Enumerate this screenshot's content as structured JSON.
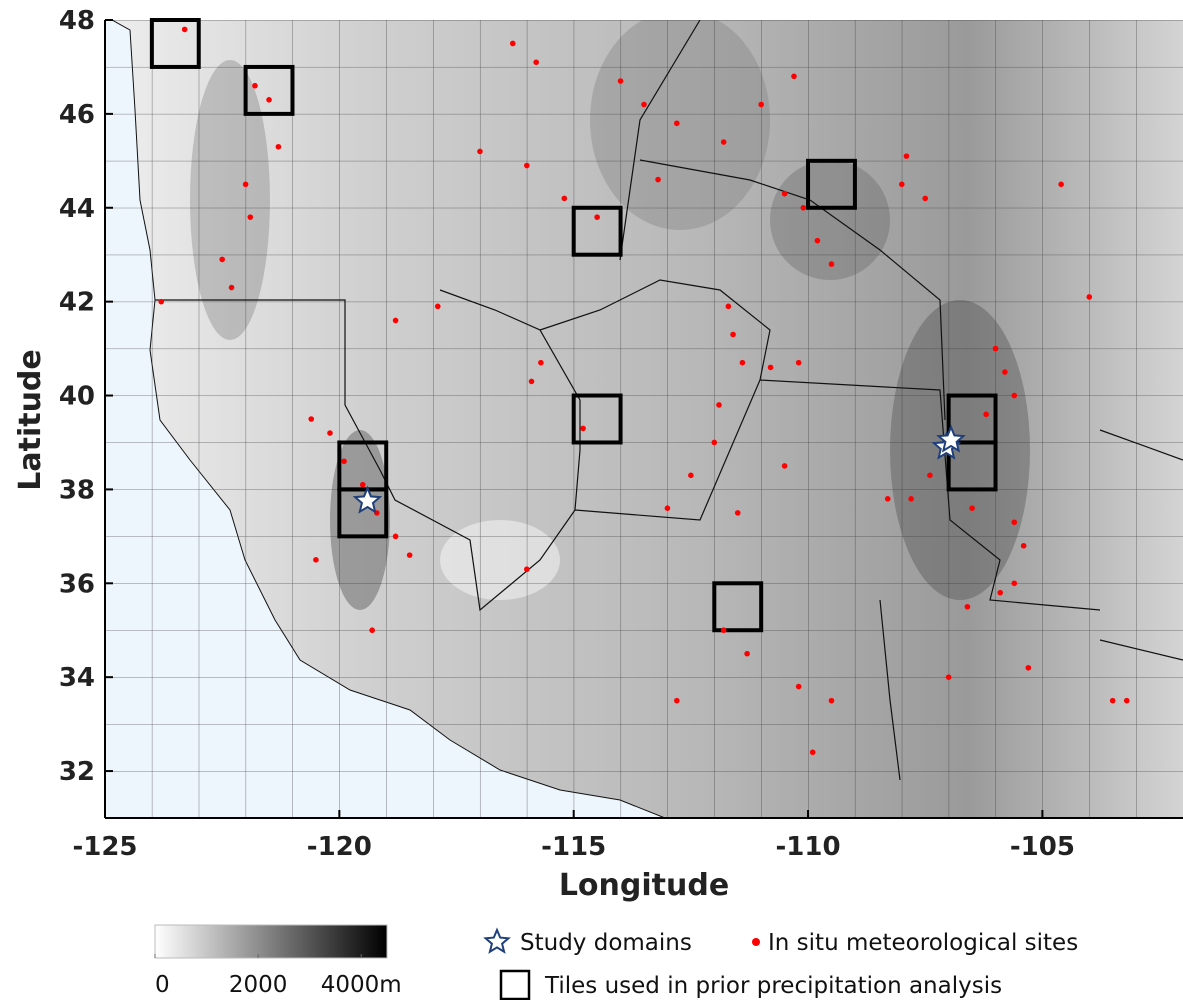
{
  "chart_data": {
    "type": "map",
    "xlabel": "Longitude",
    "ylabel": "Latitude",
    "xlim": [
      -125,
      -102
    ],
    "ylim": [
      31,
      48
    ],
    "xticks": [
      -125,
      -120,
      -115,
      -110,
      -105
    ],
    "yticks": [
      32,
      34,
      36,
      38,
      40,
      42,
      44,
      46,
      48
    ],
    "series": [
      {
        "name": "Study domains",
        "marker": "star",
        "color": "#1f3f7a",
        "x": [
          -119.4,
          -107.05,
          -106.95
        ],
        "y": [
          37.75,
          38.9,
          39.05
        ]
      },
      {
        "name": "In situ meteorological sites",
        "marker": "dot",
        "color": "#ff0000",
        "x": [
          -123.3,
          -121.8,
          -121.5,
          -121.3,
          -122.0,
          -121.9,
          -122.5,
          -122.3,
          -123.8,
          -116.3,
          -115.8,
          -114.0,
          -113.5,
          -112.8,
          -117.0,
          -116.0,
          -115.2,
          -114.5,
          -113.2,
          -111.8,
          -111.0,
          -110.3,
          -110.5,
          -110.1,
          -109.8,
          -109.5,
          -108.0,
          -107.5,
          -120.6,
          -120.2,
          -119.9,
          -119.5,
          -119.2,
          -118.8,
          -118.5,
          -120.5,
          -119.3,
          -115.7,
          -115.9,
          -114.8,
          -116.0,
          -117.9,
          -118.8,
          -111.7,
          -111.6,
          -111.4,
          -110.8,
          -110.2,
          -111.9,
          -112.0,
          -112.5,
          -113.0,
          -111.5,
          -110.5,
          -111.8,
          -111.3,
          -110.2,
          -109.5,
          -112.8,
          -109.9,
          -106.0,
          -105.8,
          -105.6,
          -106.2,
          -106.9,
          -107.4,
          -107.8,
          -108.3,
          -106.5,
          -105.6,
          -105.4,
          -105.6,
          -105.9,
          -106.6,
          -107.0,
          -105.3,
          -104.0,
          -104.6,
          -107.9,
          -103.5,
          -103.2
        ],
        "y": [
          47.8,
          46.6,
          46.3,
          45.3,
          44.5,
          43.8,
          42.9,
          42.3,
          42.0,
          47.5,
          47.1,
          46.7,
          46.2,
          45.8,
          45.2,
          44.9,
          44.2,
          43.8,
          44.6,
          45.4,
          46.2,
          46.8,
          44.3,
          44.0,
          43.3,
          42.8,
          44.5,
          44.2,
          39.5,
          39.2,
          38.6,
          38.1,
          37.5,
          37.0,
          36.6,
          36.5,
          35.0,
          40.7,
          40.3,
          39.3,
          36.3,
          41.9,
          41.6,
          41.9,
          41.3,
          40.7,
          40.6,
          40.7,
          39.8,
          39.0,
          38.3,
          37.6,
          37.5,
          38.5,
          35.0,
          34.5,
          33.8,
          33.5,
          33.5,
          32.4,
          41.0,
          40.5,
          40.0,
          39.6,
          39.0,
          38.3,
          37.8,
          37.8,
          37.6,
          37.3,
          36.8,
          36.0,
          35.8,
          35.5,
          34.0,
          34.2,
          42.1,
          44.5,
          45.1,
          33.5,
          33.5
        ]
      },
      {
        "name": "Tiles used in prior precipitation analysis",
        "marker": "square",
        "color": "#000000",
        "x": [
          -124,
          -122,
          -115,
          -110,
          -115,
          -120,
          -120,
          -112,
          -107,
          -107
        ],
        "y": [
          47,
          46,
          43,
          44,
          39,
          38,
          37,
          35,
          39,
          38
        ]
      }
    ],
    "colorbar": {
      "lim": [
        0,
        4500
      ],
      "ticks": [
        0,
        2000,
        {
          "value": 4000,
          "label": "4000m"
        }
      ]
    }
  }
}
